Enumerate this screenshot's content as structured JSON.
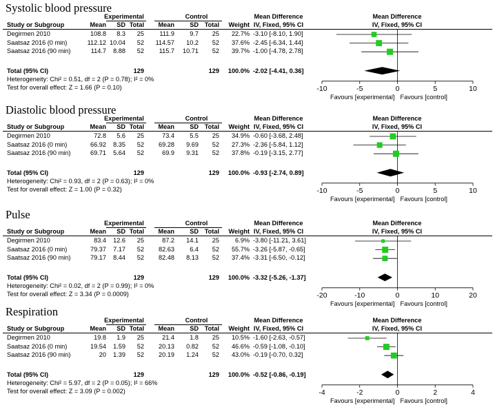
{
  "labels": {
    "experimental": "Experimental",
    "control": "Control",
    "mean_difference": "Mean Difference",
    "study_or_subgroup": "Study or Subgroup",
    "mean": "Mean",
    "sd": "SD",
    "total": "Total",
    "weight": "Weight",
    "method": "IV, Fixed, 95% CI",
    "total_95ci": "Total (95% CI)",
    "favours_left": "Favours [experimental]",
    "favours_right": "Favours [control]"
  },
  "chart_data": [
    {
      "type": "forest",
      "title": "Systolic blood pressure",
      "xlim": [
        -10,
        10
      ],
      "ticks": [
        -10,
        -5,
        0,
        5,
        10
      ],
      "tick_labels": [
        "-10",
        "-5",
        "0",
        "5",
        "10"
      ],
      "studies": [
        {
          "name": "Degirmen 2010",
          "e_mean": "108.8",
          "e_sd": "8.3",
          "e_n": "25",
          "c_mean": "111.9",
          "c_sd": "9.7",
          "c_n": "25",
          "weight": "22.7%",
          "ci_text": "-3.10 [-8.10, 1.90]",
          "md": -3.1,
          "lo": -8.1,
          "hi": 1.9,
          "w": 22.7
        },
        {
          "name": "Saatsaz 2016 (0 min)",
          "e_mean": "112.12",
          "e_sd": "10.04",
          "e_n": "52",
          "c_mean": "114.57",
          "c_sd": "10.2",
          "c_n": "52",
          "weight": "37.6%",
          "ci_text": "-2.45 [-6.34, 1.44]",
          "md": -2.45,
          "lo": -6.34,
          "hi": 1.44,
          "w": 37.6
        },
        {
          "name": "Saatsaz 2016 (90 min)",
          "e_mean": "114.7",
          "e_sd": "8.88",
          "e_n": "52",
          "c_mean": "115.7",
          "c_sd": "10.71",
          "c_n": "52",
          "weight": "39.7%",
          "ci_text": "-1.00 [-4.78, 2.78]",
          "md": -1.0,
          "lo": -4.78,
          "hi": 2.78,
          "w": 39.7
        }
      ],
      "total": {
        "e_n": "129",
        "c_n": "129",
        "weight": "100.0%",
        "ci_text": "-2.02 [-4.41, 0.36]",
        "md": -2.02,
        "lo": -4.41,
        "hi": 0.36
      },
      "heterogeneity": "Heterogeneity: Chi² = 0.51, df = 2 (P = 0.78); I² = 0%",
      "overall_effect": "Test for overall effect: Z = 1.66 (P = 0.10)"
    },
    {
      "type": "forest",
      "title": "Diastolic blood pressure",
      "xlim": [
        -10,
        10
      ],
      "ticks": [
        -10,
        -5,
        0,
        5,
        10
      ],
      "tick_labels": [
        "-10",
        "-5",
        "0",
        "5",
        "10"
      ],
      "studies": [
        {
          "name": "Degirmen 2010",
          "e_mean": "72.8",
          "e_sd": "5.6",
          "e_n": "25",
          "c_mean": "73.4",
          "c_sd": "5.5",
          "c_n": "25",
          "weight": "34.9%",
          "ci_text": "-0.60 [-3.68, 2.48]",
          "md": -0.6,
          "lo": -3.68,
          "hi": 2.48,
          "w": 34.9
        },
        {
          "name": "Saatsaz 2016 (0 min)",
          "e_mean": "66.92",
          "e_sd": "8.35",
          "e_n": "52",
          "c_mean": "69.28",
          "c_sd": "9.69",
          "c_n": "52",
          "weight": "27.3%",
          "ci_text": "-2.36 [-5.84, 1.12]",
          "md": -2.36,
          "lo": -5.84,
          "hi": 1.12,
          "w": 27.3
        },
        {
          "name": "Saatsaz 2016 (90 min)",
          "e_mean": "69.71",
          "e_sd": "5.64",
          "e_n": "52",
          "c_mean": "69.9",
          "c_sd": "9.31",
          "c_n": "52",
          "weight": "37.8%",
          "ci_text": "-0.19 [-3.15, 2.77]",
          "md": -0.19,
          "lo": -3.15,
          "hi": 2.77,
          "w": 37.8
        }
      ],
      "total": {
        "e_n": "129",
        "c_n": "129",
        "weight": "100.0%",
        "ci_text": "-0.93 [-2.74, 0.89]",
        "md": -0.93,
        "lo": -2.74,
        "hi": 0.89
      },
      "heterogeneity": "Heterogeneity: Chi² = 0.93, df = 2 (P = 0.63); I² = 0%",
      "overall_effect": "Test for overall effect: Z = 1.00 (P = 0.32)"
    },
    {
      "type": "forest",
      "title": "Pulse",
      "xlim": [
        -20,
        20
      ],
      "ticks": [
        -20,
        -10,
        0,
        10,
        20
      ],
      "tick_labels": [
        "-20",
        "-10",
        "0",
        "10",
        "20"
      ],
      "studies": [
        {
          "name": "Degirmen 2010",
          "e_mean": "83.4",
          "e_sd": "12.6",
          "e_n": "25",
          "c_mean": "87.2",
          "c_sd": "14.1",
          "c_n": "25",
          "weight": "6.9%",
          "ci_text": "-3.80 [-11.21, 3.61]",
          "md": -3.8,
          "lo": -11.21,
          "hi": 3.61,
          "w": 6.9
        },
        {
          "name": "Saatsaz 2016 (0 min)",
          "e_mean": "79.37",
          "e_sd": "7.17",
          "e_n": "52",
          "c_mean": "82.63",
          "c_sd": "6.4",
          "c_n": "52",
          "weight": "55.7%",
          "ci_text": "-3.26 [-5.87, -0.65]",
          "md": -3.26,
          "lo": -5.87,
          "hi": -0.65,
          "w": 55.7
        },
        {
          "name": "Saatsaz 2016 (90 min)",
          "e_mean": "79.17",
          "e_sd": "8.44",
          "e_n": "52",
          "c_mean": "82.48",
          "c_sd": "8.13",
          "c_n": "52",
          "weight": "37.4%",
          "ci_text": "-3.31 [-6.50, -0.12]",
          "md": -3.31,
          "lo": -6.5,
          "hi": -0.12,
          "w": 37.4
        }
      ],
      "total": {
        "e_n": "129",
        "c_n": "129",
        "weight": "100.0%",
        "ci_text": "-3.32 [-5.26, -1.37]",
        "md": -3.32,
        "lo": -5.26,
        "hi": -1.37
      },
      "heterogeneity": "Heterogeneity: Chi² = 0.02, df = 2 (P = 0.99); I² = 0%",
      "overall_effect": "Test for overall effect: Z = 3.34 (P = 0.0009)"
    },
    {
      "type": "forest",
      "title": "Respiration",
      "xlim": [
        -4,
        4
      ],
      "ticks": [
        -4,
        -2,
        0,
        2,
        4
      ],
      "tick_labels": [
        "-4",
        "-2",
        "0",
        "2",
        "4"
      ],
      "studies": [
        {
          "name": "Degirmen 2010",
          "e_mean": "19.8",
          "e_sd": "1.9",
          "e_n": "25",
          "c_mean": "21.4",
          "c_sd": "1.8",
          "c_n": "25",
          "weight": "10.5%",
          "ci_text": "-1.60 [-2.63, -0.57]",
          "md": -1.6,
          "lo": -2.63,
          "hi": -0.57,
          "w": 10.5
        },
        {
          "name": "Saatsaz 2016 (0 min)",
          "e_mean": "19.54",
          "e_sd": "1.59",
          "e_n": "52",
          "c_mean": "20.13",
          "c_sd": "0.82",
          "c_n": "52",
          "weight": "46.6%",
          "ci_text": "-0.59 [-1.08, -0.10]",
          "md": -0.59,
          "lo": -1.08,
          "hi": -0.1,
          "w": 46.6
        },
        {
          "name": "Saatsaz 2016 (90 min)",
          "e_mean": "20",
          "e_sd": "1.39",
          "e_n": "52",
          "c_mean": "20.19",
          "c_sd": "1.24",
          "c_n": "52",
          "weight": "43.0%",
          "ci_text": "-0.19 [-0.70, 0.32]",
          "md": -0.19,
          "lo": -0.7,
          "hi": 0.32,
          "w": 43.0
        }
      ],
      "total": {
        "e_n": "129",
        "c_n": "129",
        "weight": "100.0%",
        "ci_text": "-0.52 [-0.86, -0.19]",
        "md": -0.52,
        "lo": -0.86,
        "hi": -0.19
      },
      "heterogeneity": "Heterogeneity: Chi² = 5.97, df = 2 (P = 0.05); I² = 66%",
      "overall_effect": "Test for overall effect: Z = 3.09 (P = 0.002)"
    }
  ],
  "colors": {
    "marker": "#22cc22",
    "diamond": "#000000",
    "line": "#000000"
  }
}
